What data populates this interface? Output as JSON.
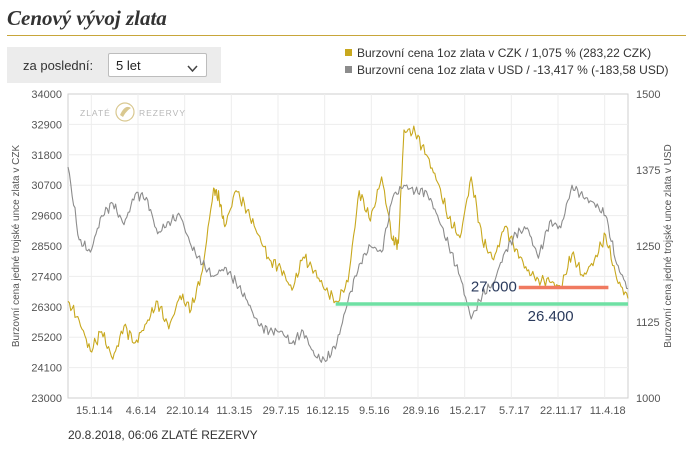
{
  "page_title": "Cenový vývoj zlata",
  "filter": {
    "label": "za poslední:",
    "selected": "5 let"
  },
  "legend": {
    "czk": {
      "label": "Burzovní cena 1oz zlata v CZK / 1,075 % (283,22 CZK)",
      "color": "#c8a81e"
    },
    "usd": {
      "label": "Burzovní cena 1oz zlata v USD / -13,417 % (-183,58 USD)",
      "color": "#8c8c8c"
    }
  },
  "watermark": {
    "left": "ZLATÉ",
    "right": "REZERVY"
  },
  "footer": "20.8.2018, 06:06 ZLATÉ REZERVY",
  "chart_data": {
    "type": "line",
    "x": [
      "15.1.14",
      "4.6.14",
      "22.10.14",
      "11.3.15",
      "29.7.15",
      "16.12.15",
      "9.5.16",
      "28.9.16",
      "15.2.17",
      "5.7.17",
      "22.11.17",
      "11.4.18"
    ],
    "y_left": {
      "label": "Burzovní cena jedné trojské unce zlata v CZK",
      "lim": [
        23000,
        34000
      ],
      "ticks": [
        23000,
        24100,
        25200,
        26300,
        27400,
        28500,
        29600,
        30700,
        31800,
        32900,
        34000
      ]
    },
    "y_right": {
      "label": "Burzovní cena jedné trojské unce zlata v USD",
      "lim": [
        1000,
        1500
      ],
      "ticks": [
        1000,
        1125,
        1250,
        1375,
        1500
      ]
    },
    "series": [
      {
        "name": "Burzovní cena 1oz zlata v CZK",
        "axis": "left",
        "color": "#c8a81e",
        "x": [
          0.0,
          0.02,
          0.04,
          0.06,
          0.08,
          0.1,
          0.12,
          0.14,
          0.16,
          0.18,
          0.2,
          0.22,
          0.24,
          0.26,
          0.27,
          0.28,
          0.3,
          0.32,
          0.34,
          0.36,
          0.38,
          0.4,
          0.42,
          0.44,
          0.46,
          0.48,
          0.5,
          0.52,
          0.54,
          0.56,
          0.58,
          0.59,
          0.6,
          0.62,
          0.64,
          0.66,
          0.68,
          0.7,
          0.72,
          0.74,
          0.76,
          0.78,
          0.8,
          0.82,
          0.84,
          0.86,
          0.88,
          0.9,
          0.92,
          0.94,
          0.96,
          0.98,
          1.0
        ],
        "values": [
          26500,
          25800,
          24700,
          25400,
          24400,
          25600,
          25000,
          25700,
          26500,
          25500,
          26700,
          26200,
          27600,
          30600,
          30200,
          29200,
          30500,
          29800,
          28900,
          28000,
          27700,
          26900,
          28100,
          27600,
          26900,
          26500,
          27200,
          30500,
          29400,
          31000,
          28700,
          28600,
          32700,
          32600,
          31800,
          30800,
          29500,
          28800,
          31000,
          28700,
          28000,
          29200,
          28400,
          27600,
          27300,
          27200,
          27000,
          28200,
          27400,
          28000,
          28900,
          27300,
          26600
        ]
      },
      {
        "name": "Burzovní cena 1oz zlata v USD",
        "axis": "right",
        "color": "#8c8c8c",
        "x": [
          0.0,
          0.02,
          0.04,
          0.06,
          0.08,
          0.1,
          0.12,
          0.14,
          0.16,
          0.18,
          0.2,
          0.22,
          0.24,
          0.26,
          0.28,
          0.3,
          0.32,
          0.34,
          0.36,
          0.38,
          0.4,
          0.42,
          0.44,
          0.46,
          0.48,
          0.5,
          0.52,
          0.54,
          0.56,
          0.58,
          0.6,
          0.62,
          0.64,
          0.66,
          0.68,
          0.7,
          0.72,
          0.74,
          0.76,
          0.78,
          0.8,
          0.82,
          0.84,
          0.86,
          0.88,
          0.9,
          0.92,
          0.94,
          0.96,
          0.98,
          1.0
        ],
        "values": [
          1380,
          1260,
          1240,
          1300,
          1320,
          1285,
          1335,
          1330,
          1270,
          1290,
          1300,
          1250,
          1220,
          1200,
          1215,
          1190,
          1160,
          1120,
          1110,
          1110,
          1090,
          1110,
          1070,
          1060,
          1090,
          1160,
          1220,
          1250,
          1240,
          1330,
          1350,
          1340,
          1340,
          1300,
          1250,
          1200,
          1130,
          1170,
          1190,
          1240,
          1270,
          1280,
          1230,
          1290,
          1280,
          1350,
          1330,
          1320,
          1300,
          1220,
          1180
        ]
      }
    ],
    "annotations": [
      {
        "text": "27.000",
        "value": 27000,
        "axis": "left",
        "from": 0.805,
        "to": 0.965,
        "color": "#f07a60"
      },
      {
        "text": "26.400",
        "value": 26400,
        "axis": "left",
        "from": 0.478,
        "to": 1.0,
        "color": "#6fe0a4"
      }
    ],
    "grid": true
  }
}
